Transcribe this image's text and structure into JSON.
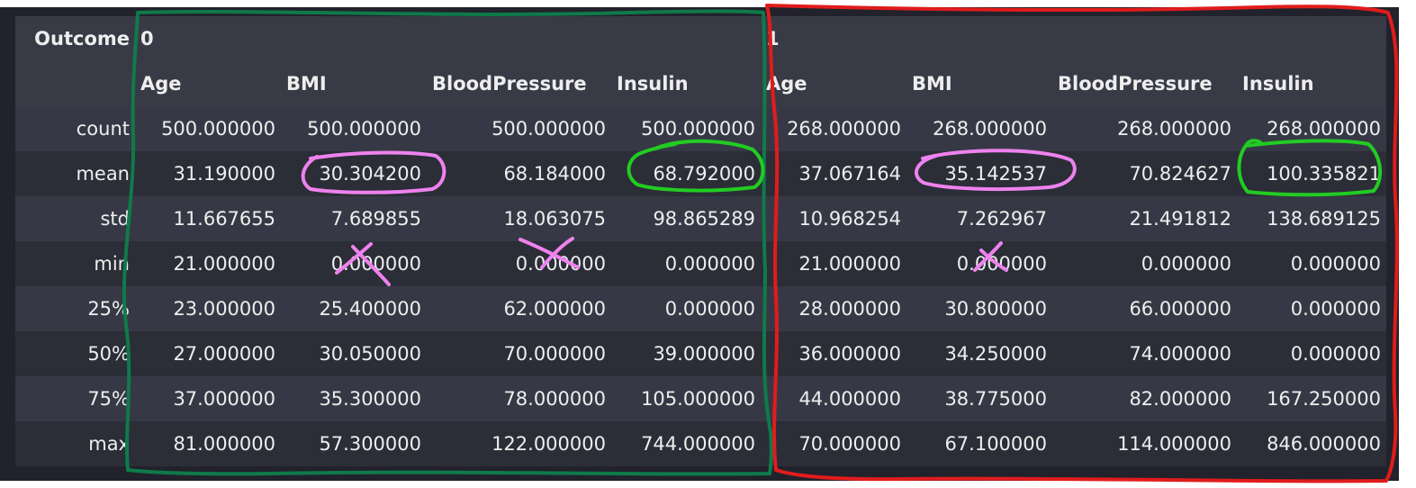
{
  "table": {
    "index_name": "Outcome",
    "groups": [
      {
        "label": "0",
        "columns": [
          "Age",
          "BMI",
          "BloodPressure",
          "Insulin"
        ]
      },
      {
        "label": "1",
        "columns": [
          "Age",
          "BMI",
          "BloodPressure",
          "Insulin"
        ]
      }
    ],
    "rows": [
      {
        "label": "count",
        "values": [
          "500.000000",
          "500.000000",
          "500.000000",
          "500.000000",
          "268.000000",
          "268.000000",
          "268.000000",
          "268.000000"
        ]
      },
      {
        "label": "mean",
        "values": [
          "31.190000",
          "30.304200",
          "68.184000",
          "68.792000",
          "37.067164",
          "35.142537",
          "70.824627",
          "100.335821"
        ]
      },
      {
        "label": "std",
        "values": [
          "11.667655",
          "7.689855",
          "18.063075",
          "98.865289",
          "10.968254",
          "7.262967",
          "21.491812",
          "138.689125"
        ]
      },
      {
        "label": "min",
        "values": [
          "21.000000",
          "0.000000",
          "0.000000",
          "0.000000",
          "21.000000",
          "0.000000",
          "0.000000",
          "0.000000"
        ]
      },
      {
        "label": "25%",
        "values": [
          "23.000000",
          "25.400000",
          "62.000000",
          "0.000000",
          "28.000000",
          "30.800000",
          "66.000000",
          "0.000000"
        ]
      },
      {
        "label": "50%",
        "values": [
          "27.000000",
          "30.050000",
          "70.000000",
          "39.000000",
          "36.000000",
          "34.250000",
          "74.000000",
          "0.000000"
        ]
      },
      {
        "label": "75%",
        "values": [
          "37.000000",
          "35.300000",
          "78.000000",
          "105.000000",
          "44.000000",
          "38.775000",
          "82.000000",
          "167.250000"
        ]
      },
      {
        "label": "max",
        "values": [
          "81.000000",
          "57.300000",
          "122.000000",
          "744.000000",
          "70.000000",
          "67.100000",
          "114.000000",
          "846.000000"
        ]
      }
    ]
  },
  "colors": {
    "background": "#21222c",
    "header_row": "#383a46",
    "row_even": "#363945",
    "row_odd": "#2b2d37",
    "text": "#eeeeee",
    "group0_outline": "#0f7a4a",
    "group1_outline": "#e01c1c",
    "mean_highlight": "#ee82ee",
    "insulin_highlight": "#22cc22",
    "cross_mark": "#ee82ee"
  },
  "annotations": {
    "group_outlines": [
      "group-0",
      "group-1"
    ],
    "circled_cells": [
      "mean:BMI:0",
      "mean:Insulin:0",
      "mean:BMI:1",
      "mean:Insulin:1"
    ],
    "crossed_cells": [
      "min:BMI:0",
      "min:BloodPressure:0",
      "min:BMI:1"
    ]
  }
}
